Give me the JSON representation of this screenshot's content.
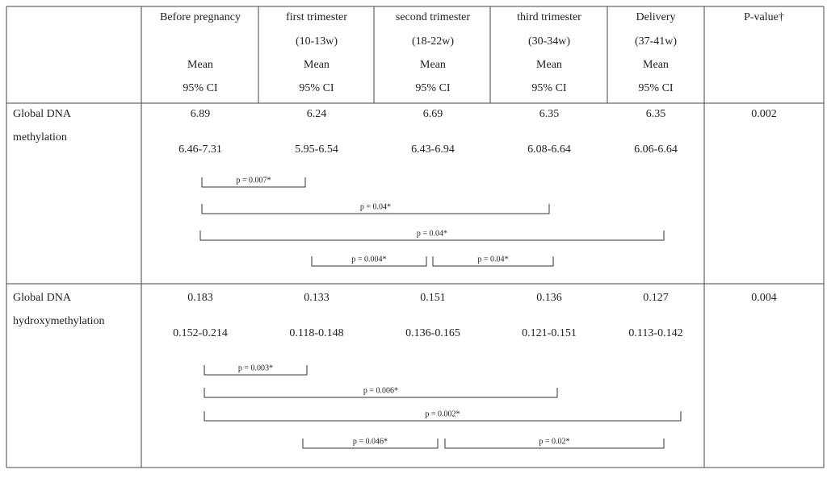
{
  "table": {
    "columns": [
      {
        "lines": [
          "Before pregnancy",
          "Mean",
          "95% CI"
        ]
      },
      {
        "lines": [
          "first trimester",
          "(10-13w)",
          "Mean",
          "95% CI"
        ]
      },
      {
        "lines": [
          "second trimester",
          "(18-22w)",
          "Mean",
          "95% CI"
        ]
      },
      {
        "lines": [
          "third trimester",
          "(30-34w)",
          "Mean",
          "95% CI"
        ]
      },
      {
        "lines": [
          "Delivery",
          "(37-41w)",
          "Mean",
          "95% CI"
        ]
      },
      {
        "lines": [
          "P-value†"
        ]
      }
    ],
    "rows": [
      {
        "label": [
          "Global DNA",
          "methylation"
        ],
        "means": [
          "6.89",
          "6.24",
          "6.69",
          "6.35",
          "6.35"
        ],
        "cis": [
          "6.46-7.31",
          "5.95-6.54",
          "6.43-6.94",
          "6.08-6.64",
          "6.06-6.64"
        ],
        "p_value": "0.002",
        "comparisons": [
          "p = 0.007*",
          "p = 0.04*",
          "p = 0.04*",
          "p = 0.004*",
          "p = 0.04*"
        ]
      },
      {
        "label": [
          "Global DNA",
          "hydroxymethylation"
        ],
        "means": [
          "0.183",
          "0.133",
          "0.151",
          "0.136",
          "0.127"
        ],
        "cis": [
          "0.152-0.214",
          "0.118-0.148",
          "0.136-0.165",
          "0.121-0.151",
          "0.113-0.142"
        ],
        "p_value": "0.004",
        "comparisons": [
          "p = 0.003*",
          "p = 0.006*",
          "p = 0.002*",
          "p = 0.046*",
          "p = 0.02*"
        ]
      }
    ]
  }
}
